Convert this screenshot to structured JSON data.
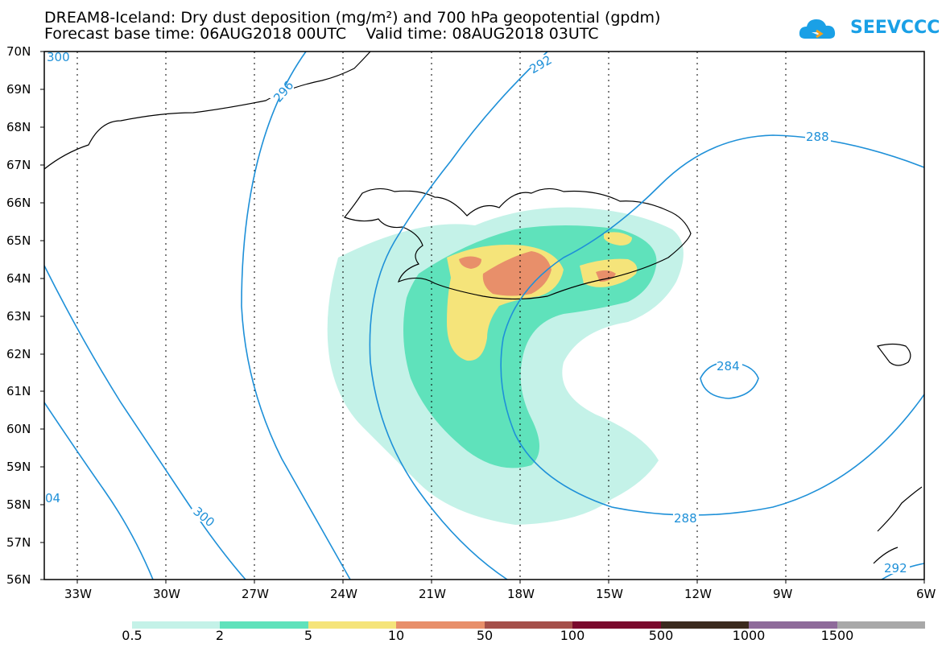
{
  "title": {
    "line1": "DREAM8-Iceland: Dry dust deposition (mg/m²) and 700 hPa geopotential (gpdm)",
    "line2": "Forecast base time: 06AUG2018 00UTC    Valid time: 08AUG2018 03UTC"
  },
  "logo": {
    "text": "SEEVCCC",
    "icon": "cloud-icon",
    "color": "#1aa0e6"
  },
  "map": {
    "lat_labels": [
      "70N",
      "69N",
      "68N",
      "67N",
      "66N",
      "65N",
      "64N",
      "63N",
      "62N",
      "61N",
      "60N",
      "59N",
      "58N",
      "57N",
      "56N"
    ],
    "lon_labels": [
      "33W",
      "30W",
      "27W",
      "24W",
      "21W",
      "18W",
      "15W",
      "12W",
      "9W",
      "6W"
    ],
    "contour_color": "#1e90d8",
    "contour_labels": [
      "300",
      "296",
      "292",
      "288",
      "288",
      "284",
      "292",
      "300",
      "04"
    ]
  },
  "colorbar": {
    "labels": [
      "0.5",
      "2",
      "5",
      "10",
      "50",
      "100",
      "500",
      "1000",
      "1500"
    ],
    "colors": [
      "#c4f2e8",
      "#5fe2bb",
      "#f5e47a",
      "#e88f6a",
      "#a5504a",
      "#7a0a2d",
      "#3b2a1e",
      "#8e6a9a",
      "#a8a8a8"
    ]
  }
}
